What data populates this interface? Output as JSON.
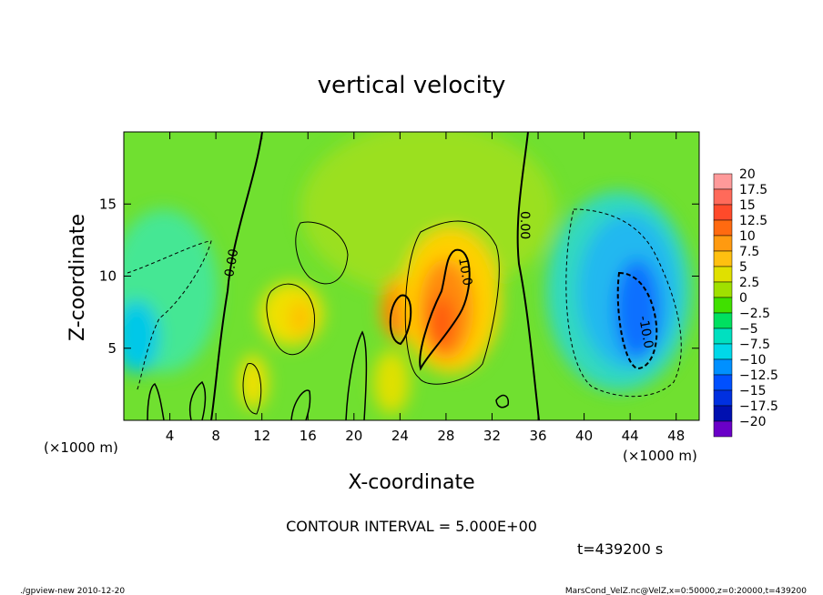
{
  "chart_data": {
    "type": "heatmap",
    "title": "vertical velocity",
    "xlabel": "X-coordinate",
    "ylabel": "Z-coordinate",
    "x_unit": "(×1000 m)",
    "y_unit": "(×1000 m)",
    "xlim": [
      0,
      50
    ],
    "ylim": [
      0,
      20
    ],
    "x_ticks": [
      4,
      8,
      12,
      16,
      20,
      24,
      28,
      32,
      36,
      40,
      44,
      48
    ],
    "y_ticks": [
      5,
      10,
      15
    ],
    "colorbar": {
      "labels": [
        "20",
        "17.5",
        "15",
        "12.5",
        "10",
        "7.5",
        "5",
        "2.5",
        "0",
        "−2.5",
        "−5",
        "−7.5",
        "−10",
        "−12.5",
        "−15",
        "−17.5",
        "−20"
      ],
      "colors": [
        "#ff9a9a",
        "#ff6a5a",
        "#ff4a2a",
        "#ff6a10",
        "#ff9a10",
        "#ffc010",
        "#e0e000",
        "#a0e000",
        "#40e000",
        "#00e060",
        "#00e0c0",
        "#00d8e8",
        "#0090ff",
        "#0050ff",
        "#0030e0",
        "#0010b0",
        "#6a00c8"
      ]
    },
    "contour_labels": [
      {
        "text": "0.00",
        "x": 9.5,
        "z": 11.5
      },
      {
        "text": "0.00",
        "x": 34.8,
        "z": 13.5
      },
      {
        "text": "10.0",
        "x": 29.2,
        "z": 10.5
      },
      {
        "text": "-10.0",
        "x": 45.0,
        "z": 7.0
      }
    ],
    "features": [
      {
        "kind": "updraft",
        "x": 28,
        "z": 7.5,
        "peak": 12.5
      },
      {
        "kind": "updraft",
        "x": 23.5,
        "z": 7.5,
        "peak": 12.5
      },
      {
        "kind": "updraft",
        "x": 15,
        "z": 7.5,
        "peak": 7.5
      },
      {
        "kind": "downdraft",
        "x": 44.5,
        "z": 7.5,
        "peak": -12.5
      },
      {
        "kind": "downdraft",
        "x": 1.5,
        "z": 8,
        "peak": -7.5
      }
    ]
  },
  "annotations": {
    "contour_interval": "CONTOUR INTERVAL = 5.000E+00",
    "time": "t=439200 s",
    "footer_left": "./gpview-new  2010-12-20",
    "footer_right": "MarsCond_VelZ.nc@VelZ,x=0:50000,z=0:20000,t=439200"
  }
}
